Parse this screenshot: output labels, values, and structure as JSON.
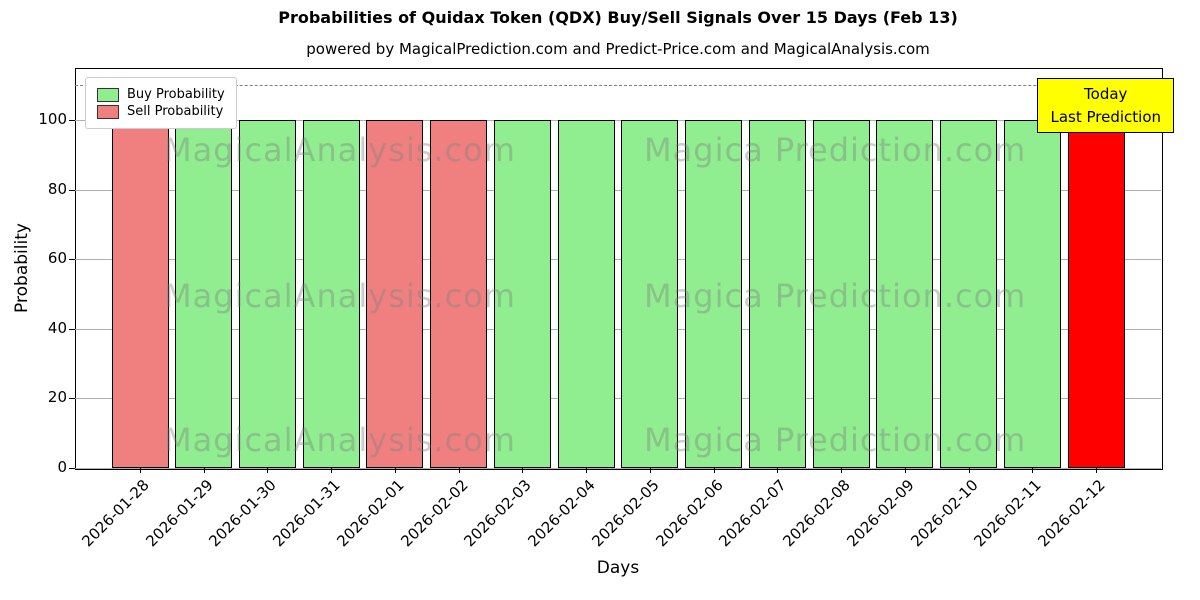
{
  "chart_data": {
    "type": "bar",
    "title": "Probabilities of Quidax Token (QDX) Buy/Sell Signals Over 15 Days (Feb 13)",
    "subtitle": "powered by MagicalPrediction.com and Predict-Price.com and MagicalAnalysis.com",
    "xlabel": "Days",
    "ylabel": "Probability",
    "ylim": [
      0,
      115
    ],
    "yticks": [
      0,
      20,
      40,
      60,
      80,
      100
    ],
    "grid": "horizontal",
    "dashed_line_y": 110,
    "categories": [
      "2026-01-28",
      "2026-01-29",
      "2026-01-30",
      "2026-01-31",
      "2026-02-01",
      "2026-02-02",
      "2026-02-03",
      "2026-02-04",
      "2026-02-05",
      "2026-02-06",
      "2026-02-07",
      "2026-02-08",
      "2026-02-09",
      "2026-02-10",
      "2026-02-11",
      "2026-02-12"
    ],
    "values": [
      100,
      100,
      100,
      100,
      100,
      100,
      100,
      100,
      100,
      100,
      100,
      100,
      100,
      100,
      100,
      100
    ],
    "bar_signals": [
      "sell",
      "buy",
      "buy",
      "buy",
      "sell",
      "sell",
      "buy",
      "buy",
      "buy",
      "buy",
      "buy",
      "buy",
      "buy",
      "buy",
      "buy",
      "today"
    ],
    "colors": {
      "buy": "#90EE90",
      "sell": "#F08080",
      "today": "#FF0000"
    },
    "legend": {
      "position": "upper-left",
      "entries": [
        {
          "label": "Buy Probability",
          "color": "#90EE90"
        },
        {
          "label": "Sell Probability",
          "color": "#F08080"
        }
      ]
    },
    "annotation": {
      "lines": [
        "Today",
        "Last Prediction"
      ],
      "bg_color": "#FFFF00"
    },
    "watermarks": {
      "left_text": "MagicalAnalysis.com",
      "right_text": "Magica Prediction.com",
      "rows": 3,
      "color": "#808080"
    }
  }
}
